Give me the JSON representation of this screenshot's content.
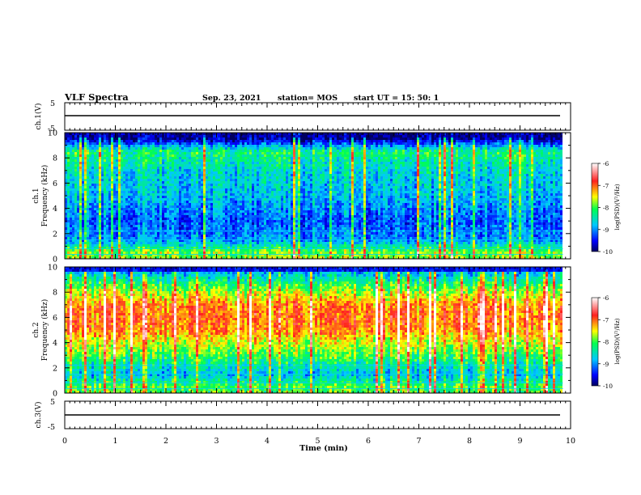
{
  "header": {
    "title": "VLF Spectra",
    "date": "Sep. 23, 2021",
    "station": "station= MOS",
    "start": "start  UT =   15: 50: 1"
  },
  "chart_data": [
    {
      "type": "line",
      "panel": "ch1-waveform",
      "ylabel": "ch.1(V)",
      "ylim": [
        -5,
        5
      ],
      "yticks": [
        "5",
        "-5"
      ],
      "xlim": [
        0,
        10
      ],
      "series": [
        {
          "values": [
            0,
            0
          ]
        }
      ]
    },
    {
      "type": "heatmap",
      "panel": "ch1-spectrogram",
      "ylabel": "ch.1\nFrequency (kHz)",
      "ylim": [
        0,
        10
      ],
      "yticks": [
        "0",
        "2",
        "4",
        "6",
        "8",
        "10"
      ],
      "xlim": [
        0,
        9.85
      ],
      "colorbar": {
        "label": "log(PSD)(V²/Hz)",
        "range": [
          -10,
          -6
        ],
        "ticks": [
          "-6",
          "-7",
          "-8",
          "-9",
          "-10"
        ]
      },
      "colors": [
        "#000080",
        "#0000ff",
        "#00c8ff",
        "#00ff60",
        "#ffff00",
        "#ff3030",
        "#ffffff"
      ],
      "profile": {
        "freq_khz": [
          0.5,
          1.5,
          3,
          5,
          7,
          8.5,
          9.5
        ],
        "level": [
          0.55,
          0.25,
          0.2,
          0.3,
          0.35,
          0.45,
          0.05
        ]
      }
    },
    {
      "type": "heatmap",
      "panel": "ch2-spectrogram",
      "ylabel": "ch.2\nFrequency (kHz)",
      "ylim": [
        0,
        10
      ],
      "yticks": [
        "0",
        "2",
        "4",
        "6",
        "8",
        "10"
      ],
      "xlim": [
        0,
        9.85
      ],
      "colorbar": {
        "label": "log(PSD)(V²/Hz)",
        "range": [
          -10,
          -6
        ],
        "ticks": [
          "-6",
          "-7",
          "-8",
          "-9",
          "-10"
        ]
      },
      "colors": [
        "#000080",
        "#0000ff",
        "#00c8ff",
        "#00ff60",
        "#ffff00",
        "#ff3030",
        "#ffffff"
      ],
      "profile": {
        "freq_khz": [
          0.5,
          1.5,
          3,
          5,
          6,
          7,
          8.5,
          9.5
        ],
        "level": [
          0.5,
          0.3,
          0.5,
          0.72,
          0.75,
          0.72,
          0.5,
          0.3
        ]
      }
    },
    {
      "type": "line",
      "panel": "ch3-waveform",
      "ylabel": "ch.3(V)",
      "ylim": [
        -5,
        5
      ],
      "yticks": [
        "5",
        "-5"
      ],
      "xlim": [
        0,
        10
      ],
      "series": [
        {
          "values": [
            0,
            0
          ]
        }
      ]
    }
  ],
  "x_axis": {
    "label": "Time  (min)",
    "ticks": [
      "0",
      "1",
      "2",
      "3",
      "4",
      "5",
      "6",
      "7",
      "8",
      "9",
      "10"
    ]
  }
}
